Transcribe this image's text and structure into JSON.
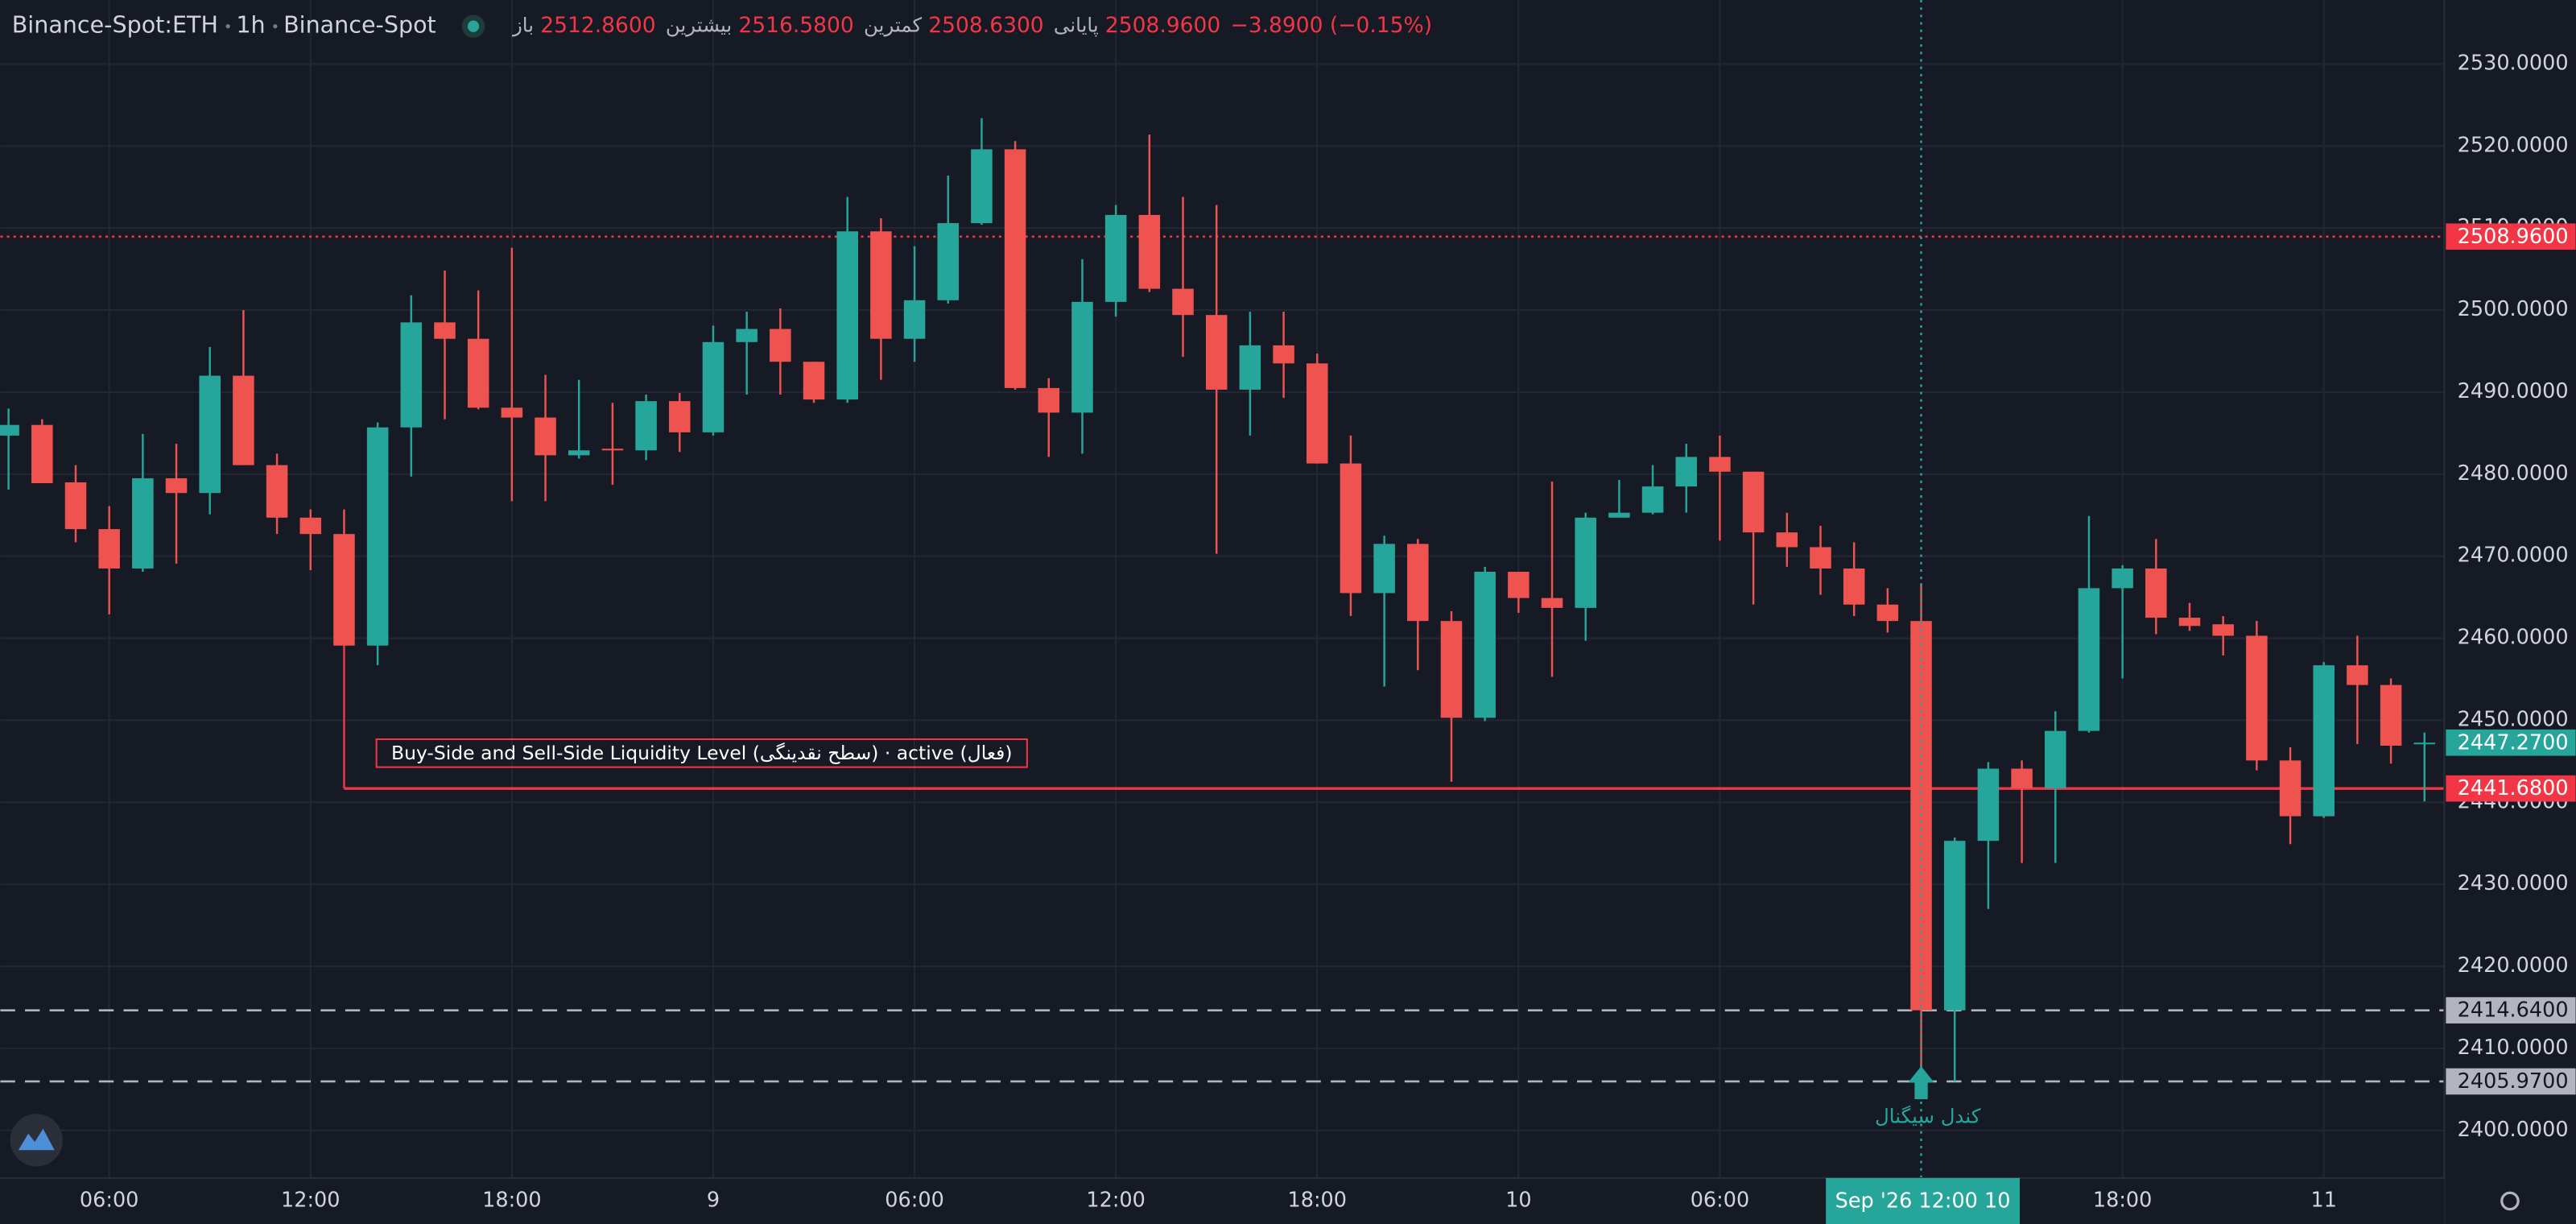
{
  "header": {
    "symbol": "Binance-Spot:ETH",
    "interval": "1h",
    "exchange": "Binance-Spot",
    "ohlc": [
      {
        "label": "باز",
        "value": "2512.8600"
      },
      {
        "label": "بیشترین",
        "value": "2516.5800"
      },
      {
        "label": "کمترین",
        "value": "2508.6300"
      },
      {
        "label": "پایانی",
        "value": "2508.9600"
      }
    ],
    "change": "−3.8900 (−0.15%)"
  },
  "chart_data": {
    "type": "candlestick",
    "up_color": "#26a69a",
    "down_color": "#ef5350",
    "categories": [
      null,
      null,
      null,
      "06:00",
      null,
      null,
      null,
      null,
      null,
      "12:00",
      null,
      null,
      null,
      null,
      null,
      "18:00",
      null,
      null,
      null,
      null,
      null,
      "9",
      null,
      null,
      null,
      null,
      null,
      "06:00",
      null,
      null,
      null,
      null,
      null,
      "12:00",
      null,
      null,
      null,
      null,
      null,
      "18:00",
      null,
      null,
      null,
      null,
      null,
      "10",
      null,
      null,
      null,
      null,
      null,
      "06:00",
      null,
      null,
      null,
      null,
      null,
      null,
      null,
      null,
      null,
      null,
      null,
      "18:00",
      null,
      null,
      null,
      null,
      null,
      "11",
      null,
      null,
      null
    ],
    "open": [
      2484.7,
      2486,
      2479,
      2473.3,
      2468.5,
      2479.5,
      2477.7,
      2492,
      2481.1,
      2474.7,
      2472.7,
      2459.1,
      2485.7,
      2498.5,
      2496.5,
      2488.1,
      2486.9,
      2482.3,
      2483.1,
      2482.9,
      2488.9,
      2485.1,
      2496.1,
      2497.7,
      2493.7,
      2489.1,
      2509.6,
      2496.5,
      2501.2,
      2510.6,
      2519.6,
      2490.5,
      2487.5,
      2501,
      2511.6,
      2502.6,
      2499.4,
      2490.3,
      2495.7,
      2493.5,
      2481.3,
      2465.5,
      2471.5,
      2462.1,
      2450.3,
      2468.1,
      2464.9,
      2463.7,
      2474.7,
      2475.3,
      2478.5,
      2482.1,
      2480.3,
      2472.9,
      2471.1,
      2468.5,
      2464.1,
      2462.1,
      2414.64,
      2435.3,
      2444.1,
      2441.7,
      2448.7,
      2466.1,
      2468.5,
      2462.5,
      2461.7,
      2460.3,
      2445.1,
      2438.3,
      2456.7,
      2454.3,
      2447.1
    ],
    "high": [
      2488,
      2486.7,
      2481.1,
      2476.1,
      2484.9,
      2483.7,
      2495.5,
      2500,
      2482.5,
      2475.7,
      2475.7,
      2486.3,
      2501.8,
      2504.8,
      2502.4,
      2507.6,
      2492.1,
      2491.5,
      2488.7,
      2489.7,
      2489.9,
      2498.1,
      2499.8,
      2500.2,
      2493.7,
      2513.8,
      2511.2,
      2507.8,
      2516.4,
      2523.4,
      2520.6,
      2491.7,
      2506.2,
      2512.8,
      2521.4,
      2513.8,
      2512.8,
      2499.8,
      2499.8,
      2494.7,
      2484.7,
      2472.5,
      2472.1,
      2463.3,
      2468.7,
      2468.1,
      2479.1,
      2475.3,
      2479.3,
      2481.1,
      2483.7,
      2484.7,
      2480.3,
      2475.3,
      2473.7,
      2471.7,
      2466.1,
      2466.7,
      2435.7,
      2444.9,
      2445.1,
      2451.1,
      2474.9,
      2468.9,
      2472.1,
      2464.3,
      2462.7,
      2462.1,
      2446.7,
      2457.1,
      2460.3,
      2455.1,
      2448.5
    ],
    "low": [
      2478.1,
      2478.9,
      2471.7,
      2462.9,
      2468.1,
      2469.1,
      2475.1,
      2481.1,
      2472.7,
      2468.3,
      2459.1,
      2456.7,
      2479.7,
      2486.7,
      2487.9,
      2476.7,
      2476.7,
      2481.9,
      2478.7,
      2481.7,
      2482.7,
      2484.7,
      2489.7,
      2489.7,
      2488.7,
      2488.7,
      2491.5,
      2493.7,
      2500.8,
      2510.4,
      2490.3,
      2482.1,
      2482.5,
      2499.2,
      2502.2,
      2494.3,
      2470.3,
      2484.7,
      2489.3,
      2481.3,
      2462.7,
      2454.1,
      2456.1,
      2442.5,
      2449.9,
      2463.1,
      2455.3,
      2459.7,
      2474.7,
      2475.1,
      2475.3,
      2471.9,
      2464.1,
      2468.7,
      2465.3,
      2462.7,
      2460.7,
      2406.6,
      2405.97,
      2427,
      2432.6,
      2432.6,
      2448.5,
      2455.1,
      2460.5,
      2460.9,
      2457.9,
      2443.9,
      2434.9,
      2438.1,
      2447.1,
      2444.7,
      2440.1
    ],
    "close": [
      2486,
      2478.9,
      2473.3,
      2468.5,
      2479.5,
      2477.7,
      2492,
      2481.1,
      2474.7,
      2472.7,
      2459.1,
      2485.7,
      2498.5,
      2496.5,
      2488.1,
      2486.9,
      2482.3,
      2482.9,
      2482.9,
      2488.9,
      2485.1,
      2496.1,
      2497.7,
      2493.7,
      2489.1,
      2509.6,
      2496.5,
      2501.2,
      2510.6,
      2519.6,
      2490.5,
      2487.5,
      2501,
      2511.6,
      2502.6,
      2499.4,
      2490.3,
      2495.7,
      2493.5,
      2481.3,
      2465.5,
      2471.5,
      2462.1,
      2450.3,
      2468.1,
      2464.9,
      2463.7,
      2474.7,
      2475.3,
      2478.5,
      2482.1,
      2480.3,
      2472.9,
      2471.1,
      2468.5,
      2464.1,
      2462.1,
      2414.64,
      2435.3,
      2444.1,
      2441.7,
      2448.7,
      2466.1,
      2468.5,
      2462.5,
      2461.5,
      2460.3,
      2445.1,
      2438.3,
      2456.7,
      2454.3,
      2446.9,
      2447.27
    ],
    "ylim": [
      2394.2,
      2537.8
    ],
    "yticks": [
      {
        "value": 2400,
        "label": "2400.0000"
      },
      {
        "value": 2410,
        "label": "2410.0000"
      },
      {
        "value": 2420,
        "label": "2420.0000"
      },
      {
        "value": 2430,
        "label": "2430.0000"
      },
      {
        "value": 2440,
        "label": "2440.0000"
      },
      {
        "value": 2450,
        "label": "2450.0000"
      },
      {
        "value": 2460,
        "label": "2460.0000"
      },
      {
        "value": 2470,
        "label": "2470.0000"
      },
      {
        "value": 2480,
        "label": "2480.0000"
      },
      {
        "value": 2490,
        "label": "2490.0000"
      },
      {
        "value": 2500,
        "label": "2500.0000"
      },
      {
        "value": 2510,
        "label": "2510.0000"
      },
      {
        "value": 2520,
        "label": "2520.0000"
      },
      {
        "value": 2530,
        "label": "2530.0000"
      }
    ],
    "grid": true,
    "levels": [
      {
        "value": 2508.96,
        "label": "2508.9600",
        "color": "#f23645",
        "style": "dotted",
        "line": true
      },
      {
        "value": 2447.27,
        "label": "2447.2700",
        "color": "#26a69a",
        "style": "none",
        "line": false
      },
      {
        "value": 2441.68,
        "label": "2441.6800",
        "color": "#f23645",
        "style": "solid",
        "line": true,
        "start": 10,
        "text": "Buy-Side and Sell-Side Liquidity Level (سطح نقدینگی) · active (فعال)"
      },
      {
        "value": 2414.64,
        "label": "2414.6400",
        "color": "#b2b5be",
        "style": "dashed",
        "line": true
      },
      {
        "value": 2405.97,
        "label": "2405.9700",
        "color": "#b2b5be",
        "style": "dashed",
        "line": true
      }
    ],
    "signal": {
      "index": 57,
      "label": "کندل سیگنال"
    },
    "crosshair": {
      "index": 57,
      "label": "Sep '26  12:00 10"
    }
  }
}
